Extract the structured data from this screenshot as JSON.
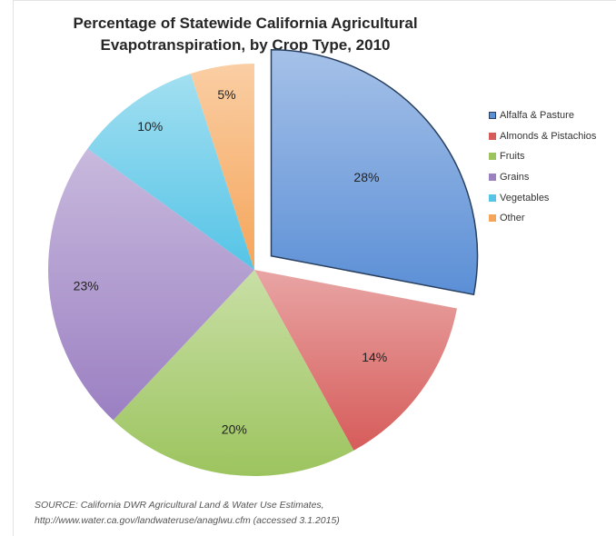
{
  "chart_data": {
    "type": "pie",
    "title_lines": [
      "Percentage of Statewide California Agricultural",
      "Evapotranspiration, by Crop Type, 2010"
    ],
    "categories": [
      "Alfalfa & Pasture",
      "Almonds & Pistachios",
      "Fruits",
      "Grains",
      "Vegetables",
      "Other"
    ],
    "values": [
      28,
      14,
      20,
      23,
      10,
      5
    ],
    "data_labels": [
      "28%",
      "14%",
      "20%",
      "23%",
      "10%",
      "5%"
    ],
    "colors": [
      "#5b8fd6",
      "#d65c5a",
      "#9cc45e",
      "#9b80c2",
      "#55c4e6",
      "#f5a55a"
    ],
    "exploded": [
      "Alfalfa & Pasture"
    ],
    "legend_position": "right"
  },
  "source_lines": [
    "SOURCE: California DWR Agricultural Land & Water Use Estimates,",
    "http://www.water.ca.gov/landwateruse/anaglwu.cfm (accessed 3.1.2015)"
  ]
}
